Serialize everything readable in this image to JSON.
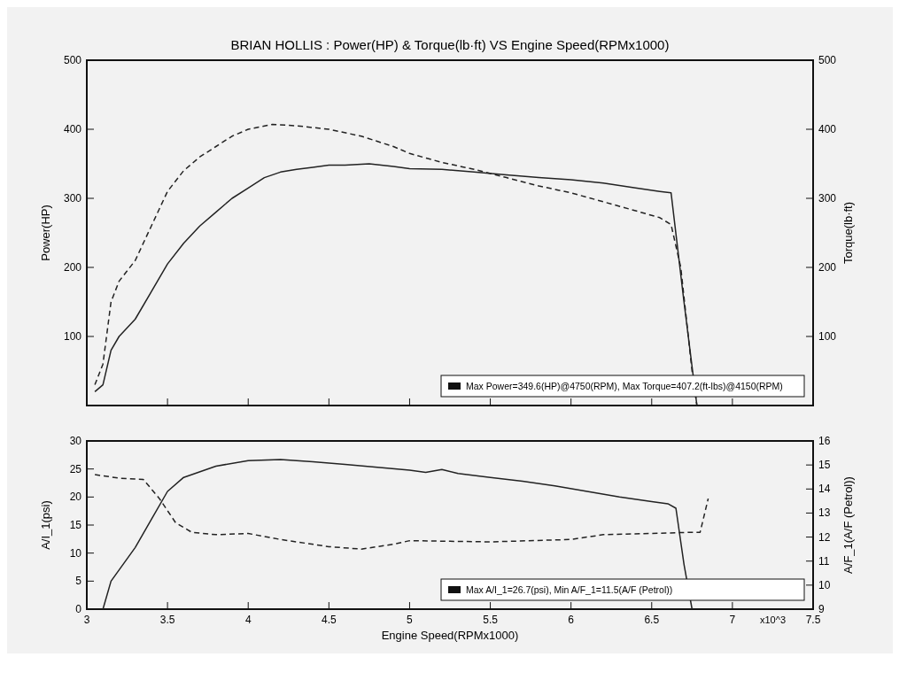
{
  "chart_data": [
    {
      "type": "line",
      "title": "BRIAN HOLLIS : Power(HP) & Torque(lb·ft) VS Engine Speed(RPMx1000)",
      "ylabel": "Power(HP)",
      "y2label": "Torque(lb·ft)",
      "xlim": [
        3,
        7.5
      ],
      "xticks": [
        3,
        3.5,
        4,
        4.5,
        5,
        5.5,
        6,
        6.5,
        7,
        7.5
      ],
      "tick_labels": "y",
      "ylim": [
        0,
        500
      ],
      "yticks": [
        100,
        200,
        300,
        400,
        500
      ],
      "y2lim": [
        0,
        500
      ],
      "y2ticks": [
        100,
        200,
        300,
        400,
        500
      ],
      "annotations": [
        "Max Power=349.6(HP)@4750(RPM), Max Torque=407.2(ft-lbs)@4150(RPM)"
      ],
      "series": [
        {
          "color": "#222222",
          "line_style": "solid",
          "x": [
            3.05,
            3.1,
            3.15,
            3.2,
            3.3,
            3.4,
            3.5,
            3.6,
            3.7,
            3.8,
            3.9,
            4.0,
            4.1,
            4.2,
            4.3,
            4.4,
            4.5,
            4.6,
            4.75,
            4.9,
            5.0,
            5.2,
            5.4,
            5.6,
            5.8,
            6.0,
            6.2,
            6.4,
            6.55,
            6.62,
            6.7,
            6.78
          ],
          "values": [
            20,
            30,
            80,
            100,
            125,
            165,
            205,
            235,
            260,
            280,
            300,
            315,
            330,
            338,
            342,
            345,
            348,
            348,
            350,
            346,
            343,
            342,
            338,
            334,
            330,
            327,
            322,
            315,
            310,
            308,
            150,
            0
          ]
        },
        {
          "color": "#222222",
          "line_style": "dashed",
          "axis": "y2",
          "x": [
            3.05,
            3.1,
            3.15,
            3.2,
            3.3,
            3.4,
            3.5,
            3.6,
            3.7,
            3.8,
            3.9,
            4.0,
            4.15,
            4.3,
            4.5,
            4.7,
            4.9,
            5.0,
            5.2,
            5.4,
            5.6,
            5.8,
            6.0,
            6.2,
            6.4,
            6.55,
            6.62,
            6.68,
            6.75,
            6.78
          ],
          "values": [
            30,
            60,
            150,
            180,
            210,
            260,
            310,
            340,
            360,
            375,
            390,
            400,
            407,
            405,
            400,
            390,
            375,
            365,
            352,
            342,
            330,
            318,
            308,
            295,
            282,
            272,
            262,
            200,
            50,
            0
          ]
        }
      ]
    },
    {
      "type": "line",
      "xlabel": "Engine Speed(RPMx1000)",
      "ylabel": "A/I_1(psi)",
      "y2label": "A/F_1(A/F (Petrol))",
      "xlim": [
        3,
        7.5
      ],
      "xticks": [
        3,
        3.5,
        4,
        4.5,
        5,
        5.5,
        6,
        6.5,
        7,
        7.5
      ],
      "ylim": [
        0,
        30
      ],
      "yticks": [
        0,
        5,
        10,
        15,
        20,
        25,
        30
      ],
      "y2lim": [
        9,
        16
      ],
      "y2ticks": [
        9,
        10,
        11,
        12,
        13,
        14,
        15,
        16
      ],
      "annotations": [
        "Max A/I_1=26.7(psi), Min A/F_1=11.5(A/F (Petrol))",
        "x10^3"
      ],
      "series": [
        {
          "color": "#222222",
          "line_style": "solid",
          "x": [
            3.1,
            3.15,
            3.3,
            3.4,
            3.5,
            3.6,
            3.8,
            4.0,
            4.2,
            4.4,
            4.6,
            4.8,
            5.0,
            5.1,
            5.2,
            5.3,
            5.5,
            5.7,
            5.9,
            6.1,
            6.3,
            6.5,
            6.6,
            6.65,
            6.7,
            6.75
          ],
          "values": [
            0,
            5,
            11,
            16,
            21,
            23.5,
            25.5,
            26.5,
            26.7,
            26.3,
            25.8,
            25.3,
            24.8,
            24.4,
            24.9,
            24.2,
            23.5,
            22.8,
            22,
            21,
            20,
            19.2,
            18.8,
            18,
            8,
            0
          ]
        },
        {
          "color": "#222222",
          "line_style": "dashed",
          "axis": "y2",
          "x": [
            3.05,
            3.2,
            3.35,
            3.45,
            3.55,
            3.65,
            3.8,
            4.0,
            4.2,
            4.5,
            4.7,
            4.9,
            5.0,
            5.5,
            6.0,
            6.2,
            6.5,
            6.75,
            6.8,
            6.85
          ],
          "values": [
            14.6,
            14.45,
            14.4,
            13.6,
            12.6,
            12.2,
            12.1,
            12.15,
            11.9,
            11.6,
            11.5,
            11.7,
            11.85,
            11.8,
            11.9,
            12.1,
            12.15,
            12.2,
            12.2,
            13.6
          ]
        }
      ]
    }
  ]
}
